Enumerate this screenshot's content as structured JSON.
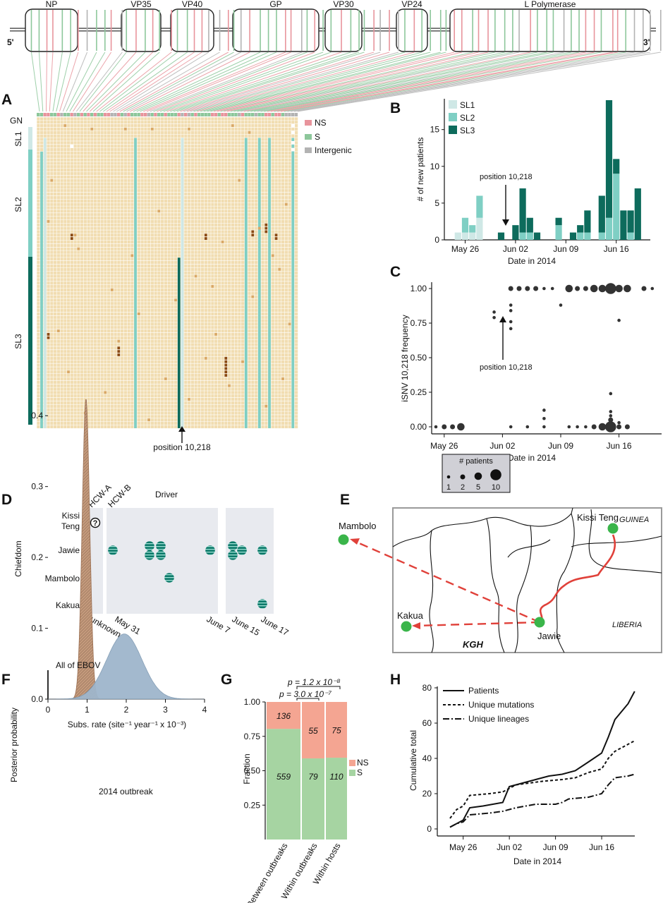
{
  "genome": {
    "genes": [
      "NP",
      "VP35",
      "VP40",
      "GP",
      "VP30",
      "VP24",
      "L Polymerase"
    ],
    "end5": "5'",
    "end3": "3'"
  },
  "panelA": {
    "label": "A",
    "rows": [
      "GN",
      "SL1",
      "SL2",
      "SL3"
    ],
    "legend": [
      "NS",
      "S",
      "Intergenic"
    ],
    "colors": {
      "NS": "#e8949c",
      "S": "#8dc79b",
      "Intergenic": "#b3b3b3",
      "SL1": "#cfe8e6",
      "SL2": "#7fcfc4",
      "SL3": "#0d6b5c",
      "cell": "#f1ddb1"
    },
    "annotation": "position 10,218"
  },
  "panelB": {
    "label": "B",
    "ylabel": "# of new patients",
    "xlabel": "Date in 2014",
    "annotation": "position 10,218",
    "legend": [
      "SL1",
      "SL2",
      "SL3"
    ]
  },
  "panelC": {
    "label": "C",
    "ylabel": "iSNV 10,218 frequency",
    "xlabel": "Date in 2014",
    "annotation": "position 10,218",
    "size_legend_title": "# patients",
    "size_legend_values": [
      "1",
      "2",
      "5",
      "10"
    ]
  },
  "panelD": {
    "label": "D",
    "ylabel": "Chiefdom",
    "rows": [
      "Kissi Teng",
      "Jawie",
      "Mambolo",
      "Kakua"
    ],
    "top_labels": [
      "HCW-A",
      "HCW-B",
      "Driver"
    ],
    "dates": [
      "unknown",
      "May 31",
      "June 7",
      "June 15",
      "June 17"
    ],
    "unknown_marker": "?"
  },
  "panelE": {
    "label": "E",
    "places": [
      "Mambolo",
      "Kissi Teng",
      "Kakua",
      "Jawie",
      "KGH"
    ],
    "regions": [
      "GUINEA",
      "LIBERIA"
    ]
  },
  "panelF": {
    "label": "F",
    "ylabel": "Posterior probability",
    "xlabel": "Subs. rate (site⁻¹ year⁻¹ x 10⁻³)",
    "annotations": [
      "All of EBOV",
      "2014 outbreak"
    ]
  },
  "panelG": {
    "label": "G",
    "ylabel": "Fraction",
    "pvalues": [
      "p = 1.2 x 10⁻⁸",
      "p = 3.0 x 10⁻⁷"
    ],
    "legend": [
      "NS",
      "S"
    ]
  },
  "panelH": {
    "label": "H",
    "ylabel": "Cumulative total",
    "xlabel": "Date in 2014",
    "legend": [
      "Patients",
      "Unique mutations",
      "Unique lineages"
    ]
  },
  "chart_data": [
    {
      "id": "B",
      "type": "bar",
      "categories": [
        "May 24",
        "May 25",
        "May 26",
        "May 27",
        "May 28",
        "May 29",
        "May 30",
        "May 31",
        "Jun 01",
        "Jun 02",
        "Jun 03",
        "Jun 04",
        "Jun 05",
        "Jun 06",
        "Jun 07",
        "Jun 08",
        "Jun 09",
        "Jun 10",
        "Jun 11",
        "Jun 12",
        "Jun 13",
        "Jun 14",
        "Jun 15",
        "Jun 16",
        "Jun 17",
        "Jun 18",
        "Jun 19"
      ],
      "series": [
        {
          "name": "SL1",
          "values": [
            0,
            1,
            1,
            1,
            3,
            0,
            0,
            0,
            0,
            0,
            0,
            0,
            0,
            0,
            0,
            0,
            0,
            0,
            0,
            0,
            0,
            0,
            0,
            0,
            0,
            0,
            0
          ]
        },
        {
          "name": "SL2",
          "values": [
            0,
            0,
            2,
            1,
            3,
            0,
            0,
            0,
            0,
            0,
            1,
            1,
            0,
            0,
            0,
            2,
            0,
            0,
            1,
            1,
            0,
            1,
            3,
            9,
            0,
            1,
            0
          ]
        },
        {
          "name": "SL3",
          "values": [
            0,
            0,
            0,
            0,
            0,
            0,
            0,
            1,
            0,
            2,
            6,
            2,
            1,
            0,
            0,
            1,
            0,
            1,
            1,
            3,
            0,
            5,
            16,
            2,
            4,
            3,
            7
          ]
        }
      ],
      "xticks": [
        "May 26",
        "Jun 02",
        "Jun 09",
        "Jun 16"
      ],
      "yticks": [
        0,
        5,
        10,
        15
      ],
      "ylim": [
        0,
        19
      ]
    },
    {
      "id": "C",
      "type": "scatter",
      "points": [
        {
          "x": "May 25",
          "y": 0.0,
          "n": 1
        },
        {
          "x": "May 26",
          "y": 0.0,
          "n": 2
        },
        {
          "x": "May 27",
          "y": 0.0,
          "n": 2
        },
        {
          "x": "May 28",
          "y": 0.0,
          "n": 5
        },
        {
          "x": "Jun 01",
          "y": 0.83,
          "n": 1
        },
        {
          "x": "Jun 01",
          "y": 0.79,
          "n": 1
        },
        {
          "x": "Jun 03",
          "y": 1.0,
          "n": 2
        },
        {
          "x": "Jun 03",
          "y": 0.88,
          "n": 1
        },
        {
          "x": "Jun 03",
          "y": 0.84,
          "n": 1
        },
        {
          "x": "Jun 03",
          "y": 0.76,
          "n": 1
        },
        {
          "x": "Jun 03",
          "y": 0.71,
          "n": 1
        },
        {
          "x": "Jun 03",
          "y": 0.0,
          "n": 1
        },
        {
          "x": "Jun 04",
          "y": 1.0,
          "n": 2
        },
        {
          "x": "Jun 05",
          "y": 1.0,
          "n": 2
        },
        {
          "x": "Jun 05",
          "y": 0.0,
          "n": 1
        },
        {
          "x": "Jun 06",
          "y": 1.0,
          "n": 2
        },
        {
          "x": "Jun 07",
          "y": 1.0,
          "n": 1
        },
        {
          "x": "Jun 07",
          "y": 0.12,
          "n": 1
        },
        {
          "x": "Jun 07",
          "y": 0.06,
          "n": 1
        },
        {
          "x": "Jun 07",
          "y": 0.0,
          "n": 1
        },
        {
          "x": "Jun 08",
          "y": 1.0,
          "n": 1
        },
        {
          "x": "Jun 09",
          "y": 0.88,
          "n": 1
        },
        {
          "x": "Jun 10",
          "y": 1.0,
          "n": 5
        },
        {
          "x": "Jun 10",
          "y": 0.0,
          "n": 1
        },
        {
          "x": "Jun 11",
          "y": 1.0,
          "n": 2
        },
        {
          "x": "Jun 11",
          "y": 0.0,
          "n": 1
        },
        {
          "x": "Jun 12",
          "y": 1.0,
          "n": 2
        },
        {
          "x": "Jun 12",
          "y": 0.0,
          "n": 1
        },
        {
          "x": "Jun 13",
          "y": 1.0,
          "n": 5
        },
        {
          "x": "Jun 13",
          "y": 0.0,
          "n": 2
        },
        {
          "x": "Jun 14",
          "y": 1.0,
          "n": 5
        },
        {
          "x": "Jun 14",
          "y": 0.0,
          "n": 5
        },
        {
          "x": "Jun 15",
          "y": 1.0,
          "n": 10
        },
        {
          "x": "Jun 15",
          "y": 0.24,
          "n": 1
        },
        {
          "x": "Jun 15",
          "y": 0.11,
          "n": 1
        },
        {
          "x": "Jun 15",
          "y": 0.08,
          "n": 1
        },
        {
          "x": "Jun 15",
          "y": 0.05,
          "n": 2
        },
        {
          "x": "Jun 15",
          "y": 0.0,
          "n": 10
        },
        {
          "x": "Jun 16",
          "y": 1.0,
          "n": 5
        },
        {
          "x": "Jun 16",
          "y": 0.77,
          "n": 1
        },
        {
          "x": "Jun 16",
          "y": 0.03,
          "n": 1
        },
        {
          "x": "Jun 16",
          "y": 0.0,
          "n": 2
        },
        {
          "x": "Jun 17",
          "y": 1.0,
          "n": 5
        },
        {
          "x": "Jun 17",
          "y": 0.0,
          "n": 2
        },
        {
          "x": "Jun 19",
          "y": 1.0,
          "n": 2
        },
        {
          "x": "Jun 20",
          "y": 1.0,
          "n": 1
        }
      ],
      "xticks": [
        "May 26",
        "Jun 02",
        "Jun 09",
        "Jun 16"
      ],
      "yticks": [
        0.0,
        0.25,
        0.5,
        0.75,
        1.0
      ],
      "ylim": [
        0,
        1
      ]
    },
    {
      "id": "F",
      "type": "area",
      "series": [
        {
          "name": "All of EBOV",
          "distribution": "normal",
          "mean": 0.97,
          "sd": 0.095,
          "peak": 0.425
        },
        {
          "name": "2014 outbreak",
          "distribution": "normal",
          "mean": 1.95,
          "sd": 0.45,
          "peak": 0.092
        }
      ],
      "xticks": [
        0,
        1,
        2,
        3,
        4
      ],
      "yticks": [
        0.0,
        0.1,
        0.2,
        0.3,
        0.4
      ],
      "xlim": [
        0,
        4
      ],
      "ylim": [
        0,
        0.45
      ]
    },
    {
      "id": "G",
      "type": "bar",
      "categories": [
        "Between outbreaks",
        "Within outbreaks",
        "Within hosts"
      ],
      "series": [
        {
          "name": "S",
          "values": [
            559,
            79,
            110
          ]
        },
        {
          "name": "NS",
          "values": [
            136,
            55,
            75
          ]
        }
      ],
      "yticks": [
        0.25,
        0.5,
        0.75,
        1.0
      ],
      "ylim": [
        0,
        1
      ]
    },
    {
      "id": "H",
      "type": "line",
      "x_days": "days since May 24, 2014",
      "series": [
        {
          "name": "Patients",
          "points": [
            [
              0,
              1
            ],
            [
              1,
              3
            ],
            [
              2,
              5
            ],
            [
              3,
              12
            ],
            [
              5,
              13
            ],
            [
              8,
              15
            ],
            [
              9,
              24
            ],
            [
              10,
              25
            ],
            [
              13,
              28
            ],
            [
              15,
              30
            ],
            [
              17,
              31
            ],
            [
              19,
              33
            ],
            [
              21,
              38
            ],
            [
              23,
              43
            ],
            [
              24,
              52
            ],
            [
              25,
              62
            ],
            [
              27,
              71
            ],
            [
              28,
              78
            ]
          ]
        },
        {
          "name": "Unique mutations",
          "points": [
            [
              0,
              6
            ],
            [
              1,
              11
            ],
            [
              2,
              13
            ],
            [
              3,
              19
            ],
            [
              6,
              20
            ],
            [
              8,
              21
            ],
            [
              9,
              23
            ],
            [
              10,
              25
            ],
            [
              12,
              26
            ],
            [
              14,
              27
            ],
            [
              17,
              28
            ],
            [
              19,
              29
            ],
            [
              21,
              32
            ],
            [
              23,
              34
            ],
            [
              24,
              40
            ],
            [
              25,
              44
            ],
            [
              27,
              48
            ],
            [
              28,
              50
            ]
          ]
        },
        {
          "name": "Unique lineages",
          "points": [
            [
              0,
              1
            ],
            [
              1,
              3
            ],
            [
              2,
              4
            ],
            [
              3,
              8
            ],
            [
              6,
              9
            ],
            [
              8,
              10
            ],
            [
              10,
              12
            ],
            [
              13,
              14
            ],
            [
              16,
              14
            ],
            [
              17,
              15
            ],
            [
              18,
              17
            ],
            [
              21,
              18
            ],
            [
              23,
              20
            ],
            [
              24,
              25
            ],
            [
              25,
              29
            ],
            [
              27,
              30
            ],
            [
              28,
              31
            ]
          ]
        }
      ],
      "xticks": [
        "May 26",
        "Jun 02",
        "Jun 09",
        "Jun 16"
      ],
      "yticks": [
        0,
        20,
        40,
        60,
        80
      ],
      "ylim": [
        0,
        80
      ]
    }
  ]
}
